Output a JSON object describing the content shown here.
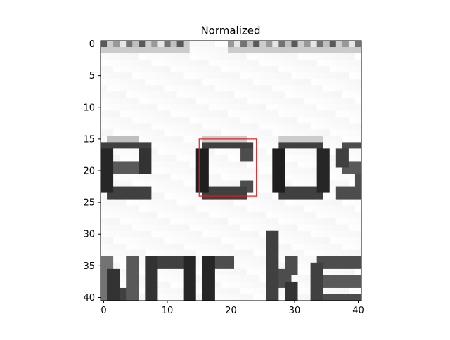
{
  "chart_data": {
    "type": "heatmap",
    "title": "Normalized",
    "xlabel": "",
    "ylabel": "",
    "colormap": "grayscale (light = high, dark = low)",
    "grid": false,
    "x_ticks": [
      "0",
      "10",
      "20",
      "30",
      "40"
    ],
    "y_ticks": [
      "0",
      "5",
      "10",
      "15",
      "20",
      "25",
      "30",
      "35",
      "40"
    ],
    "xlim": [
      -0.5,
      40.5
    ],
    "ylim": [
      40.5,
      -0.5
    ],
    "image_size": [
      41,
      41
    ],
    "image_content": "Grayscale crop of printed text: a lowercase 'e', the letter 'c', and 'os' across rows 15–25 (from 'e cos'); partial text 'vorke' cut off at the bottom (rows 30–40); dark speckles along the top row.",
    "highlight_box": {
      "color": "#e31a1c",
      "x_range": [
        15,
        24
      ],
      "y_range": [
        15,
        24
      ]
    }
  }
}
